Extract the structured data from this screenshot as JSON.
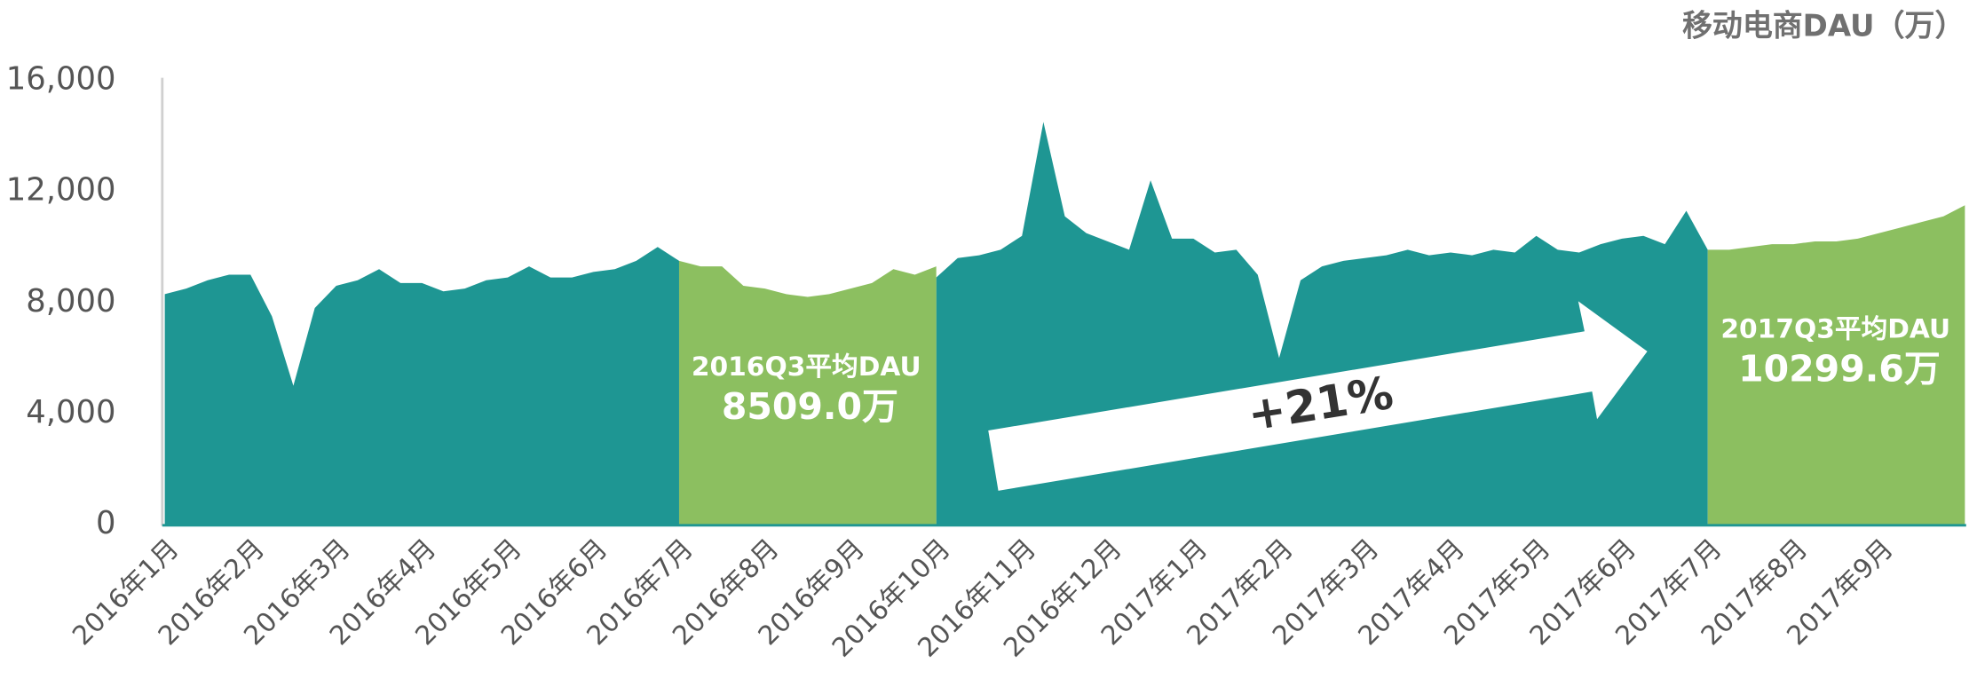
{
  "chart_data": {
    "type": "area",
    "title": "移动电商DAU（万）",
    "categories": [
      "2016年1月",
      null,
      null,
      null,
      "2016年2月",
      null,
      null,
      null,
      "2016年3月",
      null,
      null,
      null,
      "2016年4月",
      null,
      null,
      null,
      "2016年5月",
      null,
      null,
      null,
      "2016年6月",
      null,
      null,
      null,
      "2016年7月",
      null,
      null,
      null,
      "2016年8月",
      null,
      null,
      null,
      "2016年9月",
      null,
      null,
      null,
      "2016年10月",
      null,
      null,
      null,
      "2016年11月",
      null,
      null,
      null,
      "2016年12月",
      null,
      null,
      null,
      "2017年1月",
      null,
      null,
      null,
      "2017年2月",
      null,
      null,
      null,
      "2017年3月",
      null,
      null,
      null,
      "2017年4月",
      null,
      null,
      null,
      "2017年5月",
      null,
      null,
      null,
      "2017年6月",
      null,
      null,
      null,
      "2017年7月",
      null,
      null,
      null,
      "2017年8月",
      null,
      null,
      null,
      "2017年9月",
      null,
      null,
      null,
      null
    ],
    "series": [
      {
        "color": "#1e9693",
        "values": [
          8300,
          8500,
          8800,
          9000,
          9000,
          7500,
          5000,
          7800,
          8600,
          8800,
          9200,
          8700,
          8700,
          8400,
          8500,
          8800,
          8900,
          9300,
          8900,
          8900,
          9100,
          9200,
          9500,
          10000,
          9500,
          null,
          null,
          null,
          null,
          null,
          null,
          null,
          null,
          null,
          null,
          null,
          8900,
          9600,
          9700,
          9900,
          10400,
          14500,
          11100,
          10500,
          10200,
          9900,
          12400,
          10300,
          10300,
          9800,
          9900,
          9000,
          6000,
          8800,
          9300,
          9500,
          9600,
          9700,
          9900,
          9700,
          9800,
          9700,
          9900,
          9800,
          10400,
          9900,
          9800,
          10100,
          10300,
          10400,
          10100,
          11300,
          9900,
          null,
          null,
          null,
          null,
          null,
          null,
          null,
          null,
          null,
          null,
          null,
          null
        ]
      },
      {
        "color": "#8cbf60",
        "values": [
          null,
          null,
          null,
          null,
          null,
          null,
          null,
          null,
          null,
          null,
          null,
          null,
          null,
          null,
          null,
          null,
          null,
          null,
          null,
          null,
          null,
          null,
          null,
          null,
          9500,
          9300,
          9300,
          8600,
          8500,
          8300,
          8200,
          8300,
          8500,
          8700,
          9200,
          9000,
          9300,
          null,
          null,
          null,
          null,
          null,
          null,
          null,
          null,
          null,
          null,
          null,
          null,
          null,
          null,
          null,
          null,
          null,
          null,
          null,
          null,
          null,
          null,
          null,
          null,
          null,
          null,
          null,
          null,
          null,
          null,
          null,
          null,
          null,
          null,
          null,
          9900,
          9900,
          10000,
          10100,
          10100,
          10200,
          10200,
          10300,
          10500,
          10700,
          10900,
          11100,
          11500
        ]
      }
    ],
    "ylim": [
      0,
      16000
    ],
    "yticks": [
      0,
      {
        "value": 4000,
        "label": "4,000"
      },
      {
        "value": 8000,
        "label": "8,000"
      },
      {
        "value": 12000,
        "label": "12,000"
      },
      {
        "value": 16000,
        "label": "16,000"
      }
    ],
    "annotations": [
      "2016Q3平均DAU",
      "8509.0万",
      "2017Q3平均DAU",
      "10299.6万",
      "+21%"
    ]
  }
}
